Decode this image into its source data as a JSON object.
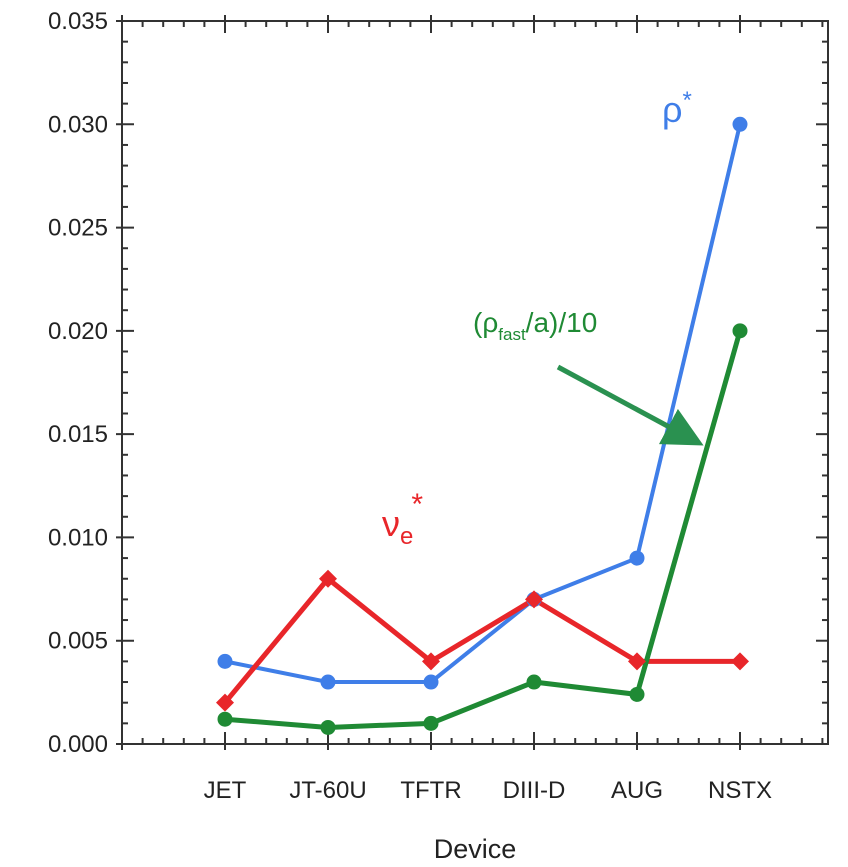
{
  "chart_data": {
    "type": "line",
    "xlabel": "Device",
    "ylabel": "",
    "categories": [
      "JET",
      "JT-60U",
      "TFTR",
      "DIII-D",
      "AUG",
      "NSTX"
    ],
    "ylim": [
      0.0,
      0.035
    ],
    "yticks": [
      "0.000",
      "0.005",
      "0.010",
      "0.015",
      "0.020",
      "0.025",
      "0.030",
      "0.035"
    ],
    "grid": false,
    "series": [
      {
        "name": "ρ*",
        "color": "#3f7ee8",
        "marker": "circle",
        "values": [
          0.004,
          0.003,
          0.003,
          0.007,
          0.009,
          0.03
        ]
      },
      {
        "name": "νe*",
        "color": "#e8262a",
        "marker": "diamond",
        "values": [
          0.002,
          0.008,
          0.004,
          0.007,
          0.004,
          0.004
        ]
      },
      {
        "name": "(ρfast/a)/10",
        "color": "#1f8a34",
        "marker": "circle",
        "values": [
          0.0012,
          0.0008,
          0.001,
          0.003,
          0.0024,
          0.02
        ]
      }
    ],
    "annotations": {
      "rho": {
        "base": "ρ",
        "sup": "*"
      },
      "nu": {
        "base": "ν",
        "sub": "e",
        "sup": "*"
      },
      "rho_fast": {
        "pre": "(ρ",
        "sub": "fast",
        "post": "/a)/10"
      }
    }
  }
}
